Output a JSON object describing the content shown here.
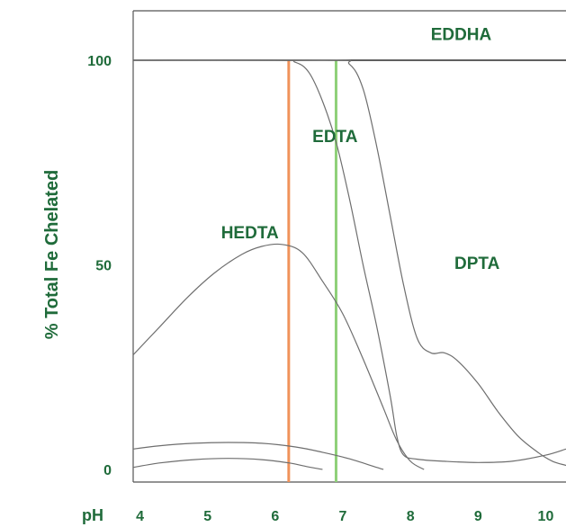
{
  "chart_data": {
    "type": "line",
    "title": "",
    "ylabel": "% Total Fe Chelated",
    "x_axis_label": "pH",
    "xlim": [
      3.9,
      10.3
    ],
    "ylim": [
      0,
      107
    ],
    "x_ticks": [
      {
        "value": 4,
        "label": "4"
      },
      {
        "value": 5,
        "label": "5"
      },
      {
        "value": 6,
        "label": "6"
      },
      {
        "value": 7,
        "label": "7"
      },
      {
        "value": 8,
        "label": "8"
      },
      {
        "value": 9,
        "label": "9"
      },
      {
        "value": 10,
        "label": "10"
      }
    ],
    "y_ticks": [
      {
        "value": 0,
        "label": "0"
      },
      {
        "value": 50,
        "label": "50"
      },
      {
        "value": 100,
        "label": "100"
      }
    ],
    "grid": false,
    "series": [
      {
        "name": "EDDHA",
        "label_at": [
          8.3,
          105
        ],
        "points": [
          [
            3.9,
            100
          ],
          [
            10.3,
            100
          ]
        ]
      },
      {
        "name": "EDTA",
        "label_at": [
          6.55,
          80
        ],
        "points": [
          [
            3.9,
            100
          ],
          [
            6.0,
            100
          ],
          [
            6.3,
            99.5
          ],
          [
            6.5,
            97
          ],
          [
            6.7,
            90
          ],
          [
            6.9,
            80
          ],
          [
            7.1,
            66
          ],
          [
            7.3,
            50
          ],
          [
            7.5,
            35
          ],
          [
            7.7,
            18
          ],
          [
            7.8,
            8
          ],
          [
            7.9,
            3.5
          ],
          [
            8.1,
            2.5
          ],
          [
            8.5,
            2
          ],
          [
            9.0,
            1.7
          ],
          [
            9.5,
            2
          ],
          [
            10.0,
            3.5
          ],
          [
            10.3,
            5
          ]
        ]
      },
      {
        "name": "DPTA",
        "label_at": [
          8.65,
          49
        ],
        "points": [
          [
            3.9,
            100
          ],
          [
            6.8,
            100
          ],
          [
            7.1,
            99
          ],
          [
            7.3,
            93
          ],
          [
            7.5,
            79
          ],
          [
            7.7,
            62
          ],
          [
            7.9,
            45
          ],
          [
            8.1,
            32
          ],
          [
            8.3,
            28.5
          ],
          [
            8.5,
            28.5
          ],
          [
            8.7,
            26.5
          ],
          [
            9.0,
            21
          ],
          [
            9.3,
            14
          ],
          [
            9.6,
            8
          ],
          [
            9.9,
            4
          ],
          [
            10.1,
            2
          ],
          [
            10.3,
            1
          ]
        ]
      },
      {
        "name": "HEDTA",
        "label_at": [
          5.2,
          56.5
        ],
        "points": [
          [
            3.9,
            28
          ],
          [
            4.3,
            35
          ],
          [
            4.7,
            42
          ],
          [
            5.1,
            48
          ],
          [
            5.5,
            52.5
          ],
          [
            5.8,
            54.5
          ],
          [
            6.1,
            55
          ],
          [
            6.4,
            53
          ],
          [
            6.7,
            46
          ],
          [
            7.0,
            38
          ],
          [
            7.3,
            27
          ],
          [
            7.6,
            15
          ],
          [
            7.8,
            7
          ],
          [
            8.0,
            2
          ],
          [
            8.2,
            0
          ]
        ]
      },
      {
        "name": "",
        "points": [
          [
            3.9,
            5
          ],
          [
            4.3,
            5.8
          ],
          [
            4.8,
            6.4
          ],
          [
            5.3,
            6.6
          ],
          [
            5.8,
            6.4
          ],
          [
            6.3,
            5.5
          ],
          [
            6.7,
            4.2
          ],
          [
            7.1,
            2.6
          ],
          [
            7.5,
            0.5
          ],
          [
            7.6,
            0
          ]
        ]
      },
      {
        "name": "",
        "points": [
          [
            3.9,
            0.5
          ],
          [
            4.3,
            1.6
          ],
          [
            4.8,
            2.4
          ],
          [
            5.3,
            2.7
          ],
          [
            5.8,
            2.4
          ],
          [
            6.2,
            1.6
          ],
          [
            6.5,
            0.6
          ],
          [
            6.7,
            0
          ]
        ]
      }
    ],
    "vertical_lines": [
      {
        "x": 6.2,
        "color": "#f0925a"
      },
      {
        "x": 6.9,
        "color": "#8fd079"
      }
    ]
  },
  "colors": {
    "text": "#1f6b3a",
    "axis": "#555555",
    "curve": "#6e6e6e",
    "eddha_line": "#2b2b2b"
  }
}
